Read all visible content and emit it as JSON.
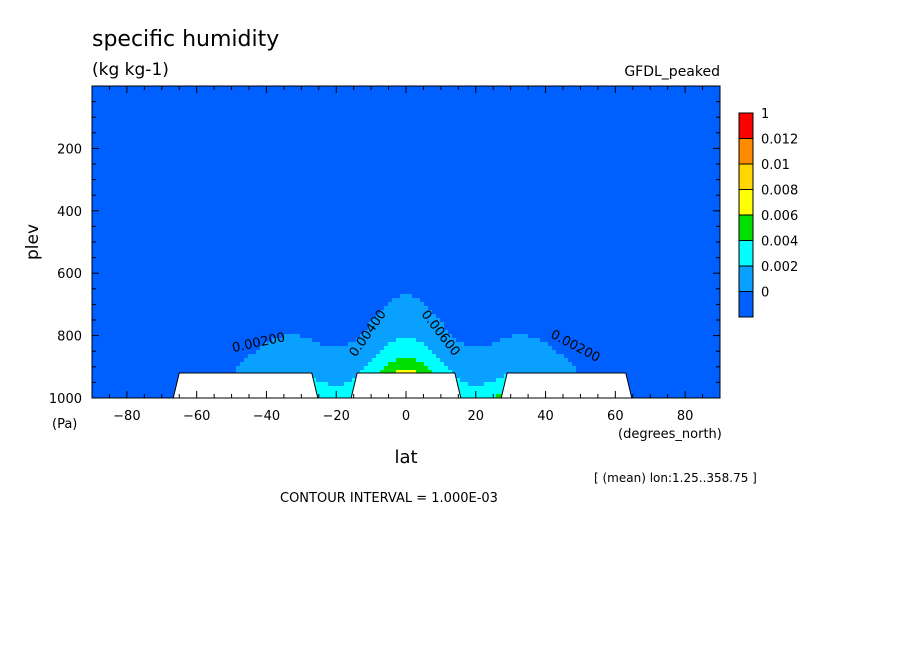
{
  "chart_data": {
    "type": "heatmap",
    "title": "specific humidity",
    "subtitle": "(kg kg-1)",
    "model_label": "GFDL_peaked",
    "xlabel": "lat",
    "xunit": "(degrees_north)",
    "ylabel": "plev",
    "yunit": "(Pa)",
    "xlim": [
      -90,
      90
    ],
    "ylim": [
      0,
      1000
    ],
    "y_inverted": true,
    "x_ticks": [
      -80,
      -60,
      -40,
      -20,
      0,
      20,
      40,
      60,
      80
    ],
    "y_ticks": [
      200,
      400,
      600,
      800,
      1000
    ],
    "mean_note": "[ (mean) lon:1.25..358.75 ]",
    "contour_note": "CONTOUR INTERVAL = 1.000E-03",
    "contour_labels": [
      {
        "text": "0.00200",
        "lat": -42,
        "plev": 835,
        "angle": -12
      },
      {
        "text": "0.00400",
        "lat": -10,
        "plev": 800,
        "angle": -55
      },
      {
        "text": "0.00600",
        "lat": 9,
        "plev": 800,
        "angle": 52
      },
      {
        "text": "0.00200",
        "lat": 48,
        "plev": 845,
        "angle": 28
      }
    ],
    "colorbar": {
      "labels": [
        "1",
        "0.012",
        "0.01",
        "0.008",
        "0.006",
        "0.004",
        "0.002",
        "0"
      ],
      "colors": [
        "#ff0000",
        "#ff8c00",
        "#ffd700",
        "#ffff00",
        "#00e000",
        "#00ffff",
        "#0aa0ff",
        "#0060ff"
      ]
    },
    "field": {
      "bins": [
        0.001,
        0.002,
        0.003,
        0.004,
        0.005,
        0.006,
        0.007,
        0.008,
        0.009,
        0.01,
        0.011,
        0.012
      ],
      "bin_colors": [
        "#0060ff",
        "#0aa0ff",
        "#0aa0ff",
        "#00ffff",
        "#00ffff",
        "#00e000",
        "#00e000",
        "#ffff00",
        "#ffff00",
        "#ffd700",
        "#ffd700",
        "#ff8c00",
        "#ff0000"
      ]
    },
    "topography_gaps": [
      {
        "lat_start": -65,
        "lat_end": -27,
        "plev_top": 920
      },
      {
        "lat_start": -14,
        "lat_end": 14,
        "plev_top": 920
      },
      {
        "lat_start": 29,
        "lat_end": 63,
        "plev_top": 920
      }
    ]
  }
}
